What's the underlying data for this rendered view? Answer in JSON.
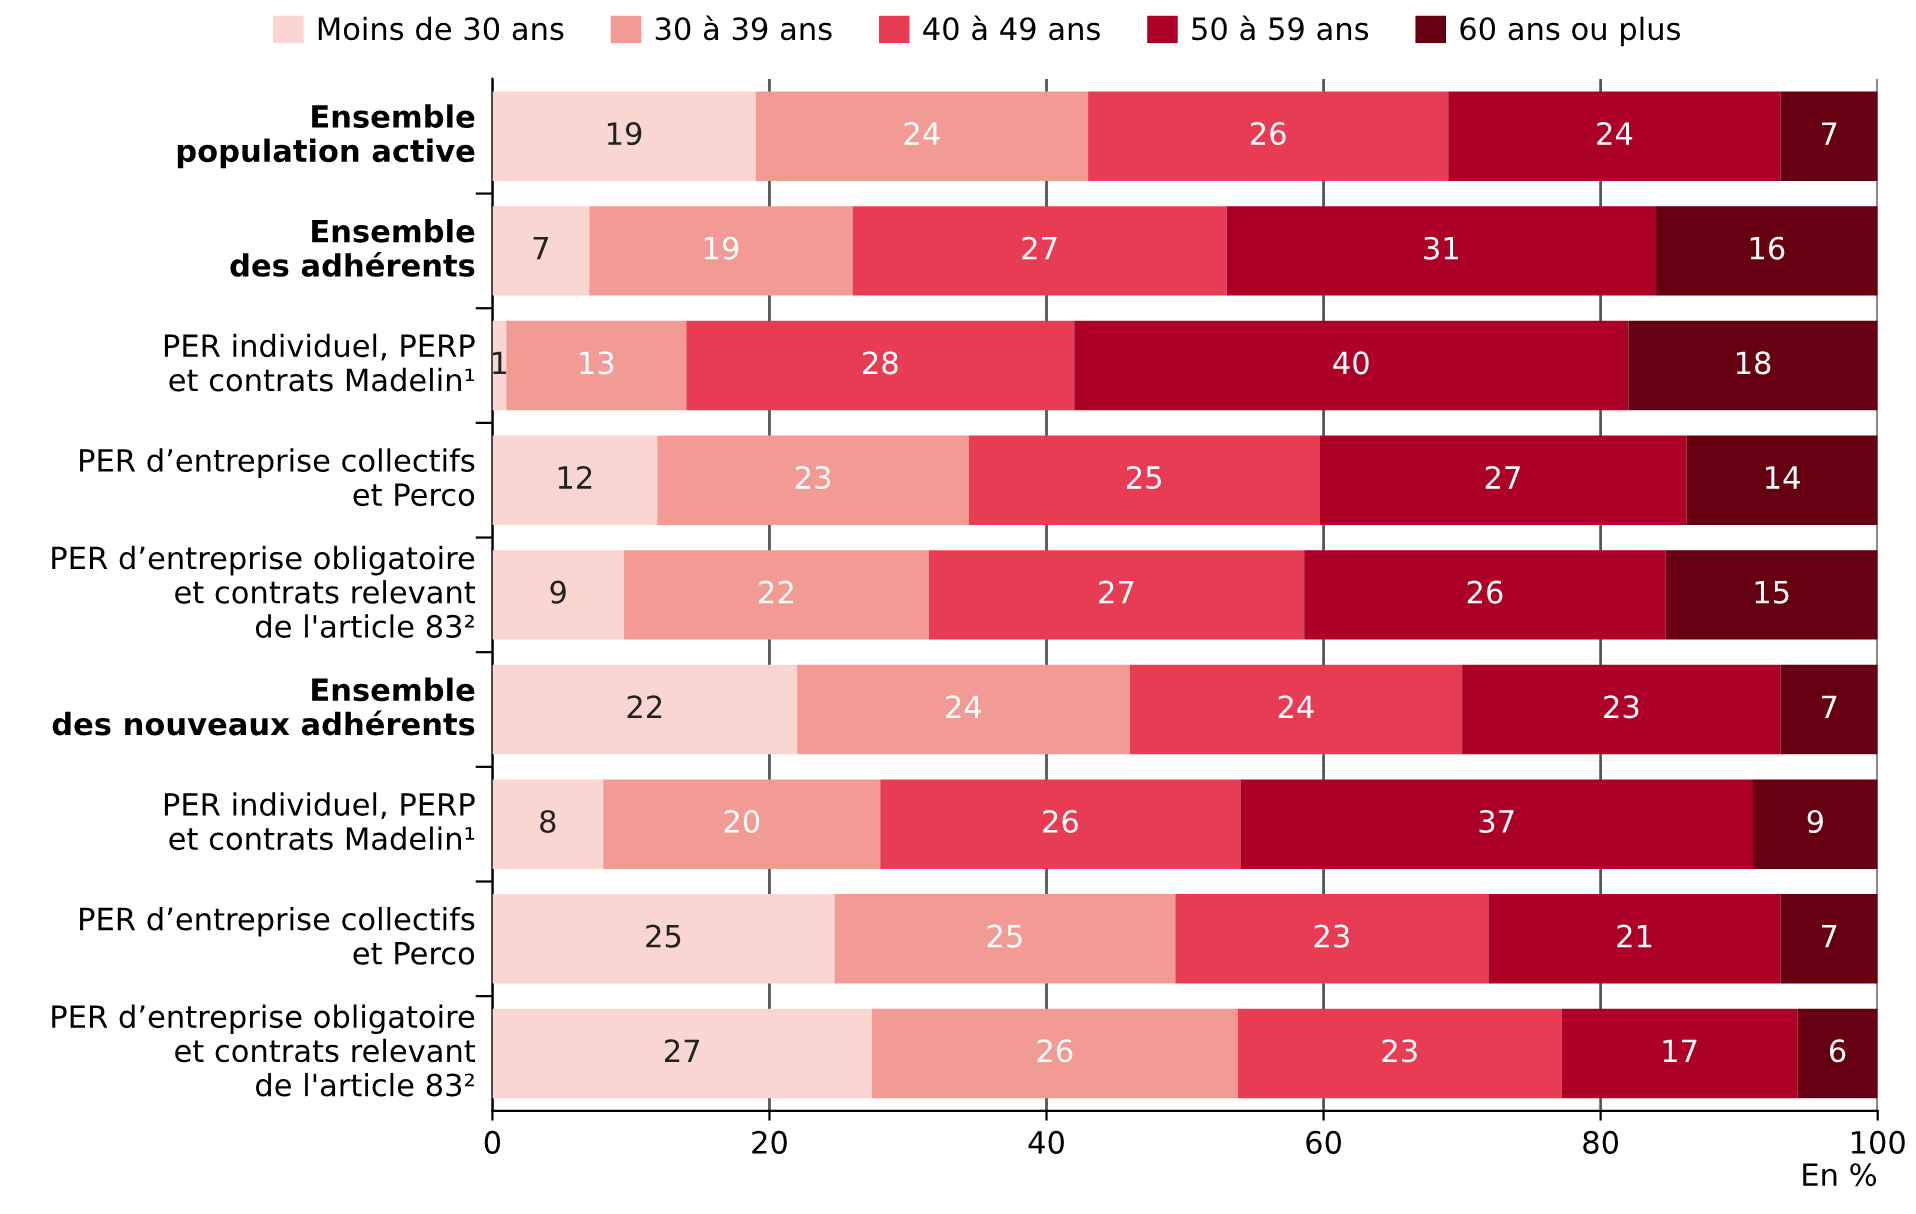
{
  "chart_data": {
    "type": "bar",
    "orientation": "horizontal",
    "stacked": true,
    "categories": [
      "Ensemble\npopulation active",
      "Ensemble\ndes adhérents",
      "PER individuel, PERP\net contrats Madelin¹",
      "PER d’entreprise collectifs\net Perco",
      "PER d’entreprise obligatoire\net contrats relevant\nde l'article 83²",
      "Ensemble\ndes nouveaux adhérents",
      "PER individuel, PERP\net contrats Madelin¹",
      "PER d’entreprise collectifs\net Perco",
      "PER d’entreprise obligatoire\net contrats relevant\nde l'article 83²"
    ],
    "series": [
      {
        "name": "Moins de 30 ans",
        "color": "#f9d6d2",
        "values": [
          19,
          7,
          1,
          11.9,
          9.5,
          22,
          8,
          24.7,
          27.4
        ],
        "value_labels": [
          "19",
          "7",
          "1",
          "12",
          "9",
          "22",
          "8",
          "25",
          "27"
        ]
      },
      {
        "name": "30 à 39 ans",
        "color": "#f29a94",
        "values": [
          24,
          19,
          13,
          22.5,
          22.0,
          24,
          20,
          24.6,
          26.4
        ],
        "value_labels": [
          "24",
          "19",
          "13",
          "23",
          "22",
          "24",
          "20",
          "25",
          "26"
        ]
      },
      {
        "name": "40 à 49 ans",
        "color": "#e83c55",
        "values": [
          26,
          27,
          28,
          25.3,
          27.1,
          24,
          26,
          22.6,
          23.4
        ],
        "value_labels": [
          "26",
          "27",
          "28",
          "25",
          "27",
          "24",
          "26",
          "23",
          "23"
        ]
      },
      {
        "name": "50 à 59 ans",
        "color": "#ac0026",
        "values": [
          24,
          31,
          40,
          26.5,
          26.1,
          23,
          37,
          21.1,
          17.0
        ],
        "value_labels": [
          "24",
          "31",
          "40",
          "27",
          "26",
          "23",
          "37",
          "21",
          "17"
        ]
      },
      {
        "name": "60 ans ou plus",
        "color": "#660010",
        "values": [
          7,
          16,
          18,
          13.8,
          15.3,
          7,
          9,
          7.0,
          5.8
        ],
        "value_labels": [
          "7",
          "16",
          "18",
          "14",
          "15",
          "7",
          "9",
          "7",
          "6"
        ]
      }
    ],
    "xlim": [
      0,
      100
    ],
    "xticks": [
      0,
      20,
      40,
      60,
      80,
      100
    ],
    "xlabel": "En %",
    "grid": "x",
    "legend": "top"
  }
}
